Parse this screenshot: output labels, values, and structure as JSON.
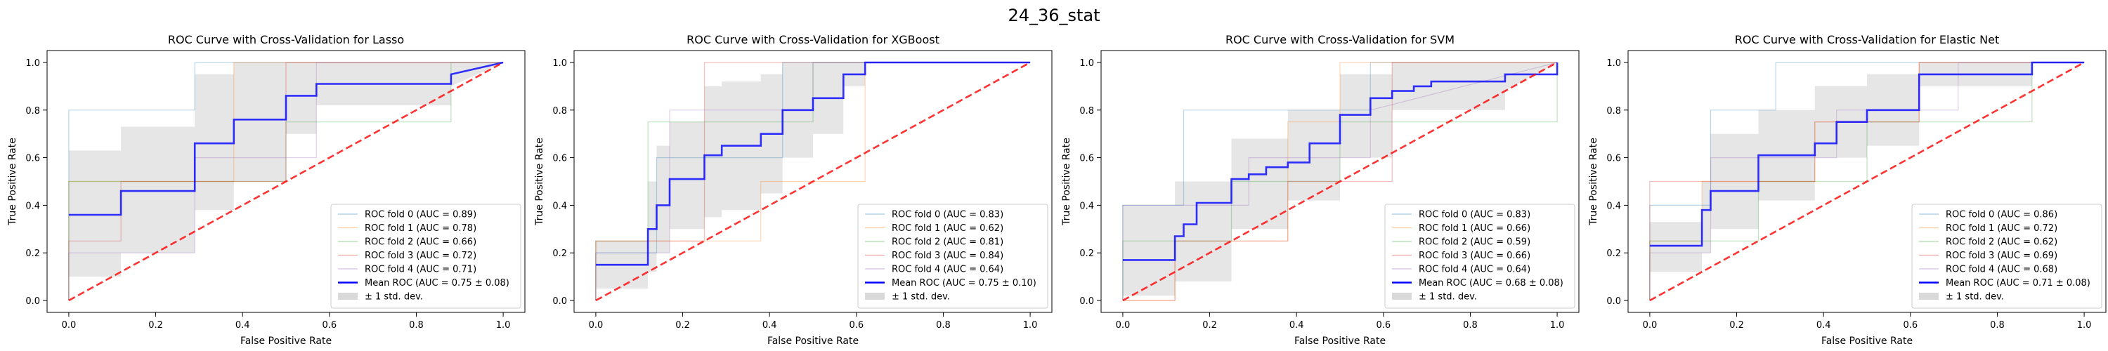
{
  "figure": {
    "suptitle": "24_36_stat"
  },
  "chart_data": [
    {
      "type": "line",
      "title": "ROC Curve with Cross-Validation for Lasso",
      "xlabel": "False Positive Rate",
      "ylabel": "True Positive Rate",
      "xlim": [
        -0.05,
        1.05
      ],
      "ylim": [
        -0.05,
        1.05
      ],
      "xticks": [
        "0.0",
        "0.2",
        "0.4",
        "0.6",
        "0.8",
        "1.0"
      ],
      "yticks": [
        "0.0",
        "0.2",
        "0.4",
        "0.6",
        "0.8",
        "1.0"
      ],
      "grid": false,
      "legend_position": "lower right",
      "series": [
        {
          "name": "ROC fold 0 (AUC = 0.89)",
          "color": "#1f77b4",
          "x": [
            0,
            0,
            0.29,
            0.29,
            1
          ],
          "y": [
            0,
            0.8,
            0.8,
            1,
            1
          ]
        },
        {
          "name": "ROC fold 1 (AUC = 0.78)",
          "color": "#ff7f0e",
          "x": [
            0,
            0,
            0.38,
            0.38,
            1
          ],
          "y": [
            0,
            0.5,
            0.5,
            1,
            1
          ]
        },
        {
          "name": "ROC fold 2 (AUC = 0.66)",
          "color": "#2ca02c",
          "x": [
            0,
            0,
            0.5,
            0.5,
            0.88,
            0.88,
            1
          ],
          "y": [
            0,
            0.5,
            0.5,
            0.75,
            0.75,
            1,
            1
          ]
        },
        {
          "name": "ROC fold 3 (AUC = 0.72)",
          "color": "#d62728",
          "x": [
            0,
            0,
            0.12,
            0.12,
            0.5,
            0.5,
            1
          ],
          "y": [
            0,
            0.25,
            0.25,
            0.5,
            0.5,
            1,
            1
          ]
        },
        {
          "name": "ROC fold 4 (AUC = 0.71)",
          "color": "#9467bd",
          "x": [
            0,
            0,
            0.29,
            0.29,
            0.57,
            0.57,
            1
          ],
          "y": [
            0,
            0.2,
            0.2,
            0.6,
            0.6,
            1,
            1
          ]
        },
        {
          "name": "Mean ROC (AUC = 0.75 ± 0.08)",
          "color": "#0000ff",
          "mean": true,
          "x": [
            0,
            0.12,
            0.12,
            0.29,
            0.29,
            0.38,
            0.38,
            0.5,
            0.5,
            0.57,
            0.57,
            0.88,
            0.88,
            1
          ],
          "y": [
            0.36,
            0.36,
            0.46,
            0.46,
            0.66,
            0.66,
            0.76,
            0.76,
            0.86,
            0.86,
            0.91,
            0.91,
            0.95,
            1
          ]
        }
      ],
      "std_band": {
        "name": "± 1 std. dev.",
        "x": [
          0,
          0.12,
          0.12,
          0.29,
          0.29,
          0.38,
          0.38,
          0.5,
          0.5,
          0.57,
          0.57,
          0.88,
          0.88,
          1
        ],
        "upper": [
          0.63,
          0.63,
          0.73,
          0.73,
          0.95,
          0.95,
          1,
          1,
          1,
          1,
          1,
          1,
          1,
          1
        ],
        "lower": [
          0.1,
          0.1,
          0.2,
          0.2,
          0.38,
          0.38,
          0.5,
          0.5,
          0.7,
          0.7,
          0.82,
          0.82,
          0.9,
          1
        ]
      },
      "chance_line": {
        "x": [
          0,
          1
        ],
        "y": [
          0,
          1
        ],
        "color": "#ff0000"
      }
    },
    {
      "type": "line",
      "title": "ROC Curve with Cross-Validation for XGBoost",
      "xlabel": "False Positive Rate",
      "ylabel": "True Positive Rate",
      "xlim": [
        -0.05,
        1.05
      ],
      "ylim": [
        -0.05,
        1.05
      ],
      "xticks": [
        "0.0",
        "0.2",
        "0.4",
        "0.6",
        "0.8",
        "1.0"
      ],
      "yticks": [
        "0.0",
        "0.2",
        "0.4",
        "0.6",
        "0.8",
        "1.0"
      ],
      "grid": false,
      "legend_position": "lower right",
      "series": [
        {
          "name": "ROC fold 0 (AUC = 0.83)",
          "color": "#1f77b4",
          "x": [
            0,
            0,
            0.14,
            0.14,
            0.43,
            0.43,
            1
          ],
          "y": [
            0,
            0.2,
            0.2,
            0.6,
            0.6,
            1,
            1
          ]
        },
        {
          "name": "ROC fold 1 (AUC = 0.62)",
          "color": "#ff7f0e",
          "x": [
            0,
            0,
            0.38,
            0.38,
            0.62,
            0.62,
            1
          ],
          "y": [
            0,
            0.25,
            0.25,
            0.5,
            0.5,
            1,
            1
          ]
        },
        {
          "name": "ROC fold 2 (AUC = 0.81)",
          "color": "#2ca02c",
          "x": [
            0,
            0,
            0.12,
            0.12,
            0.5,
            0.5,
            1
          ],
          "y": [
            0,
            0.25,
            0.25,
            0.75,
            0.75,
            1,
            1
          ]
        },
        {
          "name": "ROC fold 3 (AUC = 0.84)",
          "color": "#d62728",
          "x": [
            0,
            0,
            0.25,
            0.25,
            0.5,
            0.5,
            1
          ],
          "y": [
            0,
            0.25,
            0.25,
            1,
            1,
            1,
            1
          ]
        },
        {
          "name": "ROC fold 4 (AUC = 0.64)",
          "color": "#9467bd",
          "x": [
            0,
            0,
            0.17,
            0.17,
            0.5,
            0.5,
            1
          ],
          "y": [
            0,
            0.2,
            0.2,
            0.8,
            0.8,
            1,
            1
          ]
        },
        {
          "name": "Mean ROC (AUC = 0.75 ± 0.10)",
          "color": "#0000ff",
          "mean": true,
          "x": [
            0,
            0.12,
            0.12,
            0.14,
            0.14,
            0.17,
            0.17,
            0.25,
            0.25,
            0.29,
            0.29,
            0.33,
            0.33,
            0.38,
            0.38,
            0.43,
            0.43,
            0.5,
            0.5,
            0.57,
            0.57,
            0.62,
            0.62,
            1
          ],
          "y": [
            0.15,
            0.15,
            0.3,
            0.3,
            0.4,
            0.4,
            0.51,
            0.51,
            0.61,
            0.61,
            0.65,
            0.65,
            0.65,
            0.65,
            0.7,
            0.7,
            0.8,
            0.8,
            0.85,
            0.85,
            0.95,
            0.95,
            1,
            1
          ]
        }
      ],
      "std_band": {
        "name": "± 1 std. dev.",
        "x": [
          0,
          0.12,
          0.12,
          0.14,
          0.14,
          0.17,
          0.17,
          0.25,
          0.25,
          0.29,
          0.29,
          0.38,
          0.38,
          0.43,
          0.43,
          0.5,
          0.5,
          0.57,
          0.57,
          0.62,
          0.62,
          1
        ],
        "upper": [
          0.25,
          0.25,
          0.5,
          0.5,
          0.65,
          0.65,
          0.75,
          0.75,
          0.9,
          0.9,
          0.92,
          0.92,
          0.95,
          0.95,
          1,
          1,
          1,
          1,
          1,
          1,
          1,
          1
        ],
        "lower": [
          0.05,
          0.05,
          0.12,
          0.12,
          0.2,
          0.2,
          0.3,
          0.3,
          0.35,
          0.35,
          0.38,
          0.38,
          0.45,
          0.45,
          0.6,
          0.6,
          0.7,
          0.7,
          0.9,
          0.9,
          1,
          1
        ]
      },
      "chance_line": {
        "x": [
          0,
          1
        ],
        "y": [
          0,
          1
        ],
        "color": "#ff0000"
      }
    },
    {
      "type": "line",
      "title": "ROC Curve with Cross-Validation for SVM",
      "xlabel": "False Positive Rate",
      "ylabel": "True Positive Rate",
      "xlim": [
        -0.05,
        1.05
      ],
      "ylim": [
        -0.05,
        1.05
      ],
      "xticks": [
        "0.0",
        "0.2",
        "0.4",
        "0.6",
        "0.8",
        "1.0"
      ],
      "yticks": [
        "0.0",
        "0.2",
        "0.4",
        "0.6",
        "0.8",
        "1.0"
      ],
      "grid": false,
      "legend_position": "lower right",
      "series": [
        {
          "name": "ROC fold 0 (AUC = 0.83)",
          "color": "#1f77b4",
          "x": [
            0,
            0,
            0.14,
            0.14,
            0.57,
            0.57,
            1
          ],
          "y": [
            0,
            0.4,
            0.4,
            0.8,
            0.8,
            1,
            1
          ]
        },
        {
          "name": "ROC fold 1 (AUC = 0.66)",
          "color": "#ff7f0e",
          "x": [
            0,
            0.12,
            0.12,
            0.38,
            0.38,
            0.5,
            0.5,
            1
          ],
          "y": [
            0,
            0,
            0.25,
            0.25,
            0.75,
            0.75,
            1,
            1
          ]
        },
        {
          "name": "ROC fold 2 (AUC = 0.59)",
          "color": "#2ca02c",
          "x": [
            0,
            0,
            0.25,
            0.25,
            0.5,
            0.5,
            1,
            1
          ],
          "y": [
            0,
            0.25,
            0.25,
            0.5,
            0.5,
            0.75,
            0.75,
            1
          ]
        },
        {
          "name": "ROC fold 3 (AUC = 0.66)",
          "color": "#d62728",
          "x": [
            0,
            0.12,
            0.12,
            0.38,
            0.38,
            0.62,
            0.62,
            1
          ],
          "y": [
            0,
            0,
            0.25,
            0.25,
            0.5,
            0.5,
            1,
            1
          ]
        },
        {
          "name": "ROC fold 4 (AUC = 0.64)",
          "color": "#9467bd",
          "x": [
            0,
            0,
            0.29,
            0.29,
            0.57,
            0.57,
            1
          ],
          "y": [
            0,
            0.4,
            0.4,
            0.6,
            0.6,
            0.8,
            1
          ]
        },
        {
          "name": "Mean ROC (AUC = 0.68 ± 0.08)",
          "color": "#0000ff",
          "mean": true,
          "x": [
            0,
            0.12,
            0.12,
            0.14,
            0.14,
            0.17,
            0.17,
            0.25,
            0.25,
            0.29,
            0.29,
            0.33,
            0.33,
            0.38,
            0.38,
            0.43,
            0.43,
            0.5,
            0.5,
            0.57,
            0.57,
            0.62,
            0.62,
            0.67,
            0.67,
            0.71,
            0.71,
            0.88,
            0.88,
            1,
            1
          ],
          "y": [
            0.17,
            0.17,
            0.27,
            0.27,
            0.32,
            0.32,
            0.41,
            0.41,
            0.51,
            0.51,
            0.53,
            0.53,
            0.56,
            0.56,
            0.58,
            0.58,
            0.66,
            0.66,
            0.78,
            0.78,
            0.85,
            0.85,
            0.88,
            0.88,
            0.9,
            0.9,
            0.92,
            0.92,
            0.95,
            0.95,
            1
          ]
        }
      ],
      "std_band": {
        "name": "± 1 std. dev.",
        "x": [
          0,
          0.12,
          0.12,
          0.25,
          0.25,
          0.38,
          0.38,
          0.5,
          0.5,
          0.62,
          0.62,
          0.88,
          0.88,
          1
        ],
        "upper": [
          0.4,
          0.4,
          0.5,
          0.5,
          0.68,
          0.68,
          0.8,
          0.8,
          0.95,
          0.95,
          1,
          1,
          1,
          1
        ],
        "lower": [
          0.02,
          0.02,
          0.08,
          0.08,
          0.3,
          0.3,
          0.42,
          0.42,
          0.6,
          0.6,
          0.8,
          0.8,
          0.88,
          1
        ]
      },
      "chance_line": {
        "x": [
          0,
          1
        ],
        "y": [
          0,
          1
        ],
        "color": "#ff0000"
      }
    },
    {
      "type": "line",
      "title": "ROC Curve with Cross-Validation for Elastic Net",
      "xlabel": "False Positive Rate",
      "ylabel": "True Positive Rate",
      "xlim": [
        -0.05,
        1.05
      ],
      "ylim": [
        -0.05,
        1.05
      ],
      "xticks": [
        "0.0",
        "0.2",
        "0.4",
        "0.6",
        "0.8",
        "1.0"
      ],
      "yticks": [
        "0.0",
        "0.2",
        "0.4",
        "0.6",
        "0.8",
        "1.0"
      ],
      "grid": false,
      "legend_position": "lower right",
      "series": [
        {
          "name": "ROC fold 0 (AUC = 0.86)",
          "color": "#1f77b4",
          "x": [
            0,
            0,
            0.14,
            0.14,
            0.29,
            0.29,
            1
          ],
          "y": [
            0,
            0.4,
            0.4,
            0.8,
            0.8,
            1,
            1
          ]
        },
        {
          "name": "ROC fold 1 (AUC = 0.72)",
          "color": "#ff7f0e",
          "x": [
            0,
            0,
            0.12,
            0.12,
            0.38,
            0.38,
            0.62,
            0.62,
            1
          ],
          "y": [
            0,
            0.25,
            0.25,
            0.5,
            0.5,
            0.75,
            0.75,
            1,
            1
          ]
        },
        {
          "name": "ROC fold 2 (AUC = 0.62)",
          "color": "#2ca02c",
          "x": [
            0,
            0,
            0.25,
            0.25,
            0.5,
            0.5,
            0.88,
            0.88,
            1
          ],
          "y": [
            0,
            0.25,
            0.25,
            0.5,
            0.5,
            0.75,
            0.75,
            1,
            1
          ]
        },
        {
          "name": "ROC fold 3 (AUC = 0.69)",
          "color": "#d62728",
          "x": [
            0,
            0,
            0.38,
            0.38,
            0.62,
            0.62,
            1
          ],
          "y": [
            0,
            0.5,
            0.5,
            0.75,
            0.75,
            1,
            1
          ]
        },
        {
          "name": "ROC fold 4 (AUC = 0.68)",
          "color": "#9467bd",
          "x": [
            0,
            0,
            0.14,
            0.14,
            0.43,
            0.43,
            0.71,
            0.71,
            1
          ],
          "y": [
            0,
            0.2,
            0.2,
            0.6,
            0.6,
            0.8,
            0.8,
            1,
            1
          ]
        },
        {
          "name": "Mean ROC (AUC = 0.71 ± 0.08)",
          "color": "#0000ff",
          "mean": true,
          "x": [
            0,
            0.12,
            0.12,
            0.14,
            0.14,
            0.25,
            0.25,
            0.38,
            0.38,
            0.43,
            0.43,
            0.5,
            0.5,
            0.62,
            0.62,
            0.88,
            0.88,
            1
          ],
          "y": [
            0.23,
            0.23,
            0.38,
            0.38,
            0.46,
            0.46,
            0.61,
            0.61,
            0.66,
            0.66,
            0.75,
            0.75,
            0.8,
            0.8,
            0.95,
            0.95,
            1,
            1
          ]
        }
      ],
      "std_band": {
        "name": "± 1 std. dev.",
        "x": [
          0,
          0.12,
          0.12,
          0.14,
          0.14,
          0.25,
          0.25,
          0.38,
          0.38,
          0.5,
          0.5,
          0.62,
          0.62,
          0.88,
          0.88,
          1
        ],
        "upper": [
          0.33,
          0.33,
          0.5,
          0.5,
          0.7,
          0.7,
          0.8,
          0.8,
          0.9,
          0.9,
          0.95,
          0.95,
          1,
          1,
          1,
          1
        ],
        "lower": [
          0.12,
          0.12,
          0.2,
          0.2,
          0.3,
          0.3,
          0.42,
          0.42,
          0.6,
          0.6,
          0.65,
          0.65,
          0.9,
          0.9,
          1,
          1
        ]
      },
      "chance_line": {
        "x": [
          0,
          1
        ],
        "y": [
          0,
          1
        ],
        "color": "#ff0000"
      }
    }
  ]
}
